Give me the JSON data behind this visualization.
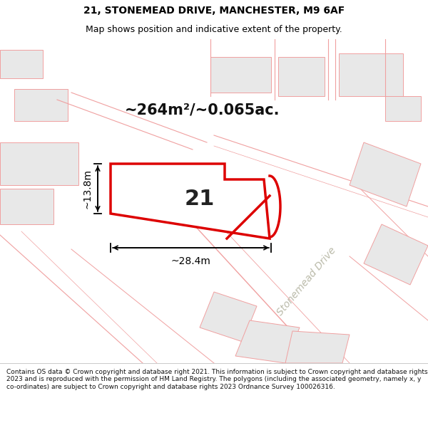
{
  "title_line1": "21, STONEMEAD DRIVE, MANCHESTER, M9 6AF",
  "title_line2": "Map shows position and indicative extent of the property.",
  "area_label": "~264m²/~0.065ac.",
  "plot_number": "21",
  "dim_width": "~28.4m",
  "dim_height": "~13.8m",
  "road_label": "Stonemead Drive",
  "footer_text": "Contains OS data © Crown copyright and database right 2021. This information is subject to Crown copyright and database rights 2023 and is reproduced with the permission of HM Land Registry. The polygons (including the associated geometry, namely x, y co-ordinates) are subject to Crown copyright and database rights 2023 Ordnance Survey 100026316.",
  "map_bg": "#ffffff",
  "plot_fill": "#ffffff",
  "plot_edge": "#dd0000",
  "parcel_edge": "#f0a0a0",
  "parcel_fill": "#e8e8e8",
  "road_line_color": "#f0a0a0",
  "title_fontsize": 10,
  "subtitle_fontsize": 9,
  "area_label_fontsize": 15,
  "plot_num_fontsize": 22,
  "dim_fontsize": 10,
  "footer_fontsize": 6.5,
  "road_label_color": "#bbbbaa",
  "road_label_fontsize": 10
}
